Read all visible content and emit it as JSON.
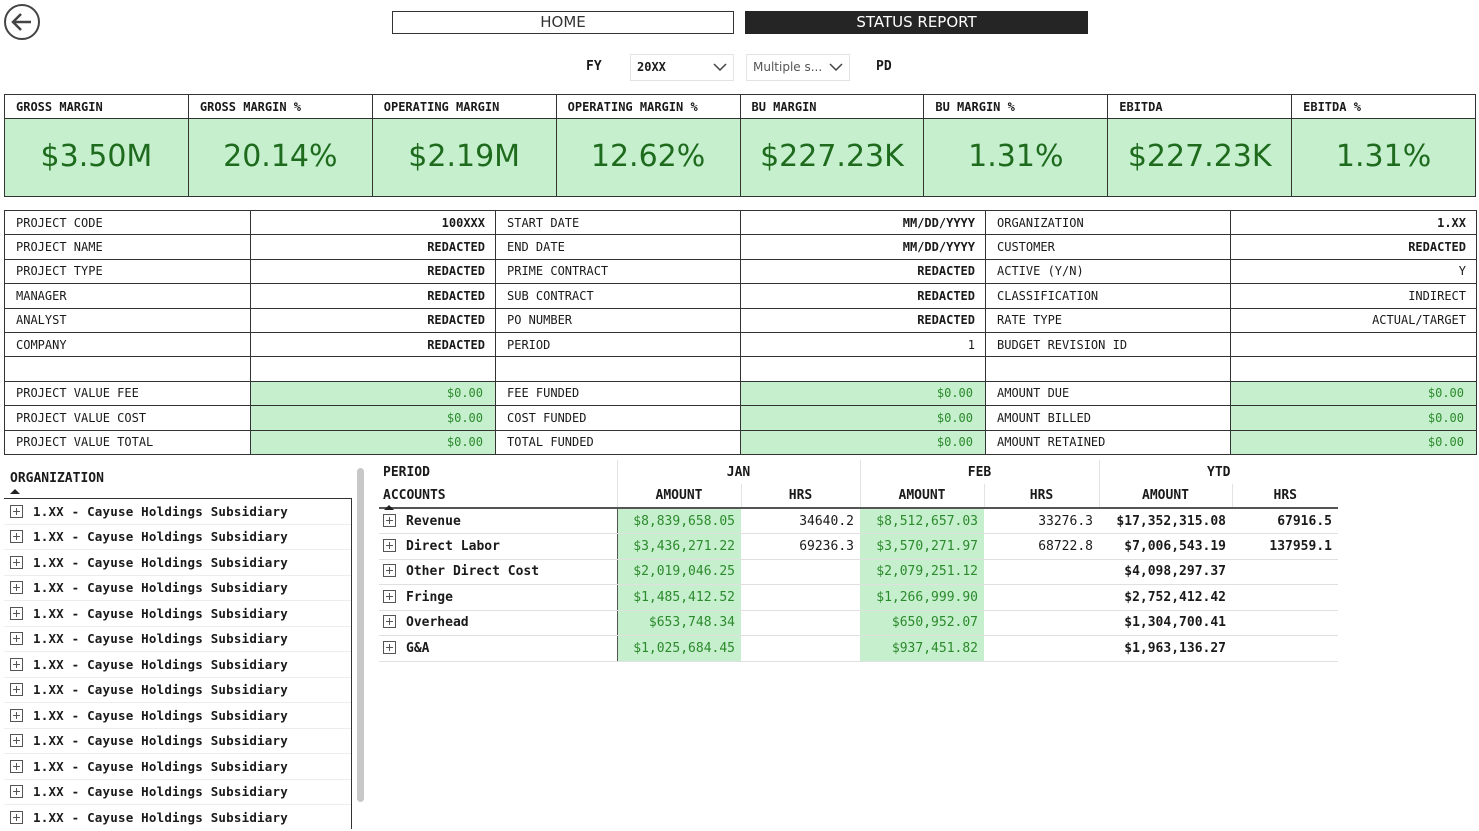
{
  "nav": {
    "home_label": "HOME",
    "status_label": "STATUS REPORT"
  },
  "filters": {
    "fy_label": "FY",
    "fy_value": "20XX",
    "period_value": "Multiple s...",
    "pd_label": "PD"
  },
  "kpis": [
    {
      "label": "GROSS MARGIN",
      "value": "$3.50M"
    },
    {
      "label": "GROSS MARGIN %",
      "value": "20.14%"
    },
    {
      "label": "OPERATING MARGIN",
      "value": "$2.19M"
    },
    {
      "label": "OPERATING MARGIN %",
      "value": "12.62%"
    },
    {
      "label": "BU MARGIN",
      "value": "$227.23K"
    },
    {
      "label": "BU MARGIN %",
      "value": "1.31%"
    },
    {
      "label": "EBITDA",
      "value": "$227.23K"
    },
    {
      "label": "EBITDA %",
      "value": "1.31%"
    }
  ],
  "info": {
    "rows": [
      [
        "PROJECT CODE",
        "100XXX",
        "START DATE",
        "MM/DD/YYYY",
        "ORGANIZATION",
        "1.XX"
      ],
      [
        "PROJECT NAME",
        "REDACTED",
        "END DATE",
        "MM/DD/YYYY",
        "CUSTOMER",
        "REDACTED"
      ],
      [
        "PROJECT TYPE",
        "REDACTED",
        "PRIME CONTRACT",
        "REDACTED",
        "ACTIVE (Y/N)",
        "Y"
      ],
      [
        "MANAGER",
        "REDACTED",
        "SUB CONTRACT",
        "REDACTED",
        "CLASSIFICATION",
        "INDIRECT"
      ],
      [
        "ANALYST",
        "REDACTED",
        "PO NUMBER",
        "REDACTED",
        "RATE TYPE",
        "ACTUAL/TARGET"
      ],
      [
        "COMPANY",
        "REDACTED",
        "PERIOD",
        "1",
        "BUDGET REVISION ID",
        ""
      ],
      [
        "",
        "",
        "",
        "",
        "",
        ""
      ],
      [
        "PROJECT VALUE FEE",
        "$0.00",
        "FEE FUNDED",
        "$0.00",
        "AMOUNT DUE",
        "$0.00"
      ],
      [
        "PROJECT VALUE COST",
        "$0.00",
        "COST FUNDED",
        "$0.00",
        "AMOUNT BILLED",
        "$0.00"
      ],
      [
        "PROJECT VALUE TOTAL",
        "$0.00",
        "TOTAL FUNDED",
        "$0.00",
        "AMOUNT RETAINED",
        "$0.00"
      ]
    ]
  },
  "organization": {
    "title": "ORGANIZATION",
    "items": [
      "1.XX - Cayuse Holdings Subsidiary",
      "1.XX - Cayuse Holdings Subsidiary",
      "1.XX - Cayuse Holdings Subsidiary",
      "1.XX - Cayuse Holdings Subsidiary",
      "1.XX - Cayuse Holdings Subsidiary",
      "1.XX - Cayuse Holdings Subsidiary",
      "1.XX - Cayuse Holdings Subsidiary",
      "1.XX - Cayuse Holdings Subsidiary",
      "1.XX - Cayuse Holdings Subsidiary",
      "1.XX - Cayuse Holdings Subsidiary",
      "1.XX - Cayuse Holdings Subsidiary",
      "1.XX - Cayuse Holdings Subsidiary",
      "1.XX - Cayuse Holdings Subsidiary"
    ]
  },
  "matrix": {
    "period_label": "PERIOD",
    "accounts_label": "ACCOUNTS",
    "periods": [
      "JAN",
      "FEB",
      "YTD"
    ],
    "amount_label": "AMOUNT",
    "hrs_label": "HRS",
    "rows": [
      {
        "account": "Revenue",
        "jan_amount": "$8,839,658.05",
        "jan_hrs": "34640.2",
        "feb_amount": "$8,512,657.03",
        "feb_hrs": "33276.3",
        "ytd_amount": "$17,352,315.08",
        "ytd_hrs": "67916.5"
      },
      {
        "account": "Direct Labor",
        "jan_amount": "$3,436,271.22",
        "jan_hrs": "69236.3",
        "feb_amount": "$3,570,271.97",
        "feb_hrs": "68722.8",
        "ytd_amount": "$7,006,543.19",
        "ytd_hrs": "137959.1"
      },
      {
        "account": "Other Direct Cost",
        "jan_amount": "$2,019,046.25",
        "jan_hrs": "",
        "feb_amount": "$2,079,251.12",
        "feb_hrs": "",
        "ytd_amount": "$4,098,297.37",
        "ytd_hrs": ""
      },
      {
        "account": "Fringe",
        "jan_amount": "$1,485,412.52",
        "jan_hrs": "",
        "feb_amount": "$1,266,999.90",
        "feb_hrs": "",
        "ytd_amount": "$2,752,412.42",
        "ytd_hrs": ""
      },
      {
        "account": "Overhead",
        "jan_amount": "$653,748.34",
        "jan_hrs": "",
        "feb_amount": "$650,952.07",
        "feb_hrs": "",
        "ytd_amount": "$1,304,700.41",
        "ytd_hrs": ""
      },
      {
        "account": "G&A",
        "jan_amount": "$1,025,684.45",
        "jan_hrs": "",
        "feb_amount": "$937,451.82",
        "feb_hrs": "",
        "ytd_amount": "$1,963,136.27",
        "ytd_hrs": ""
      }
    ]
  }
}
